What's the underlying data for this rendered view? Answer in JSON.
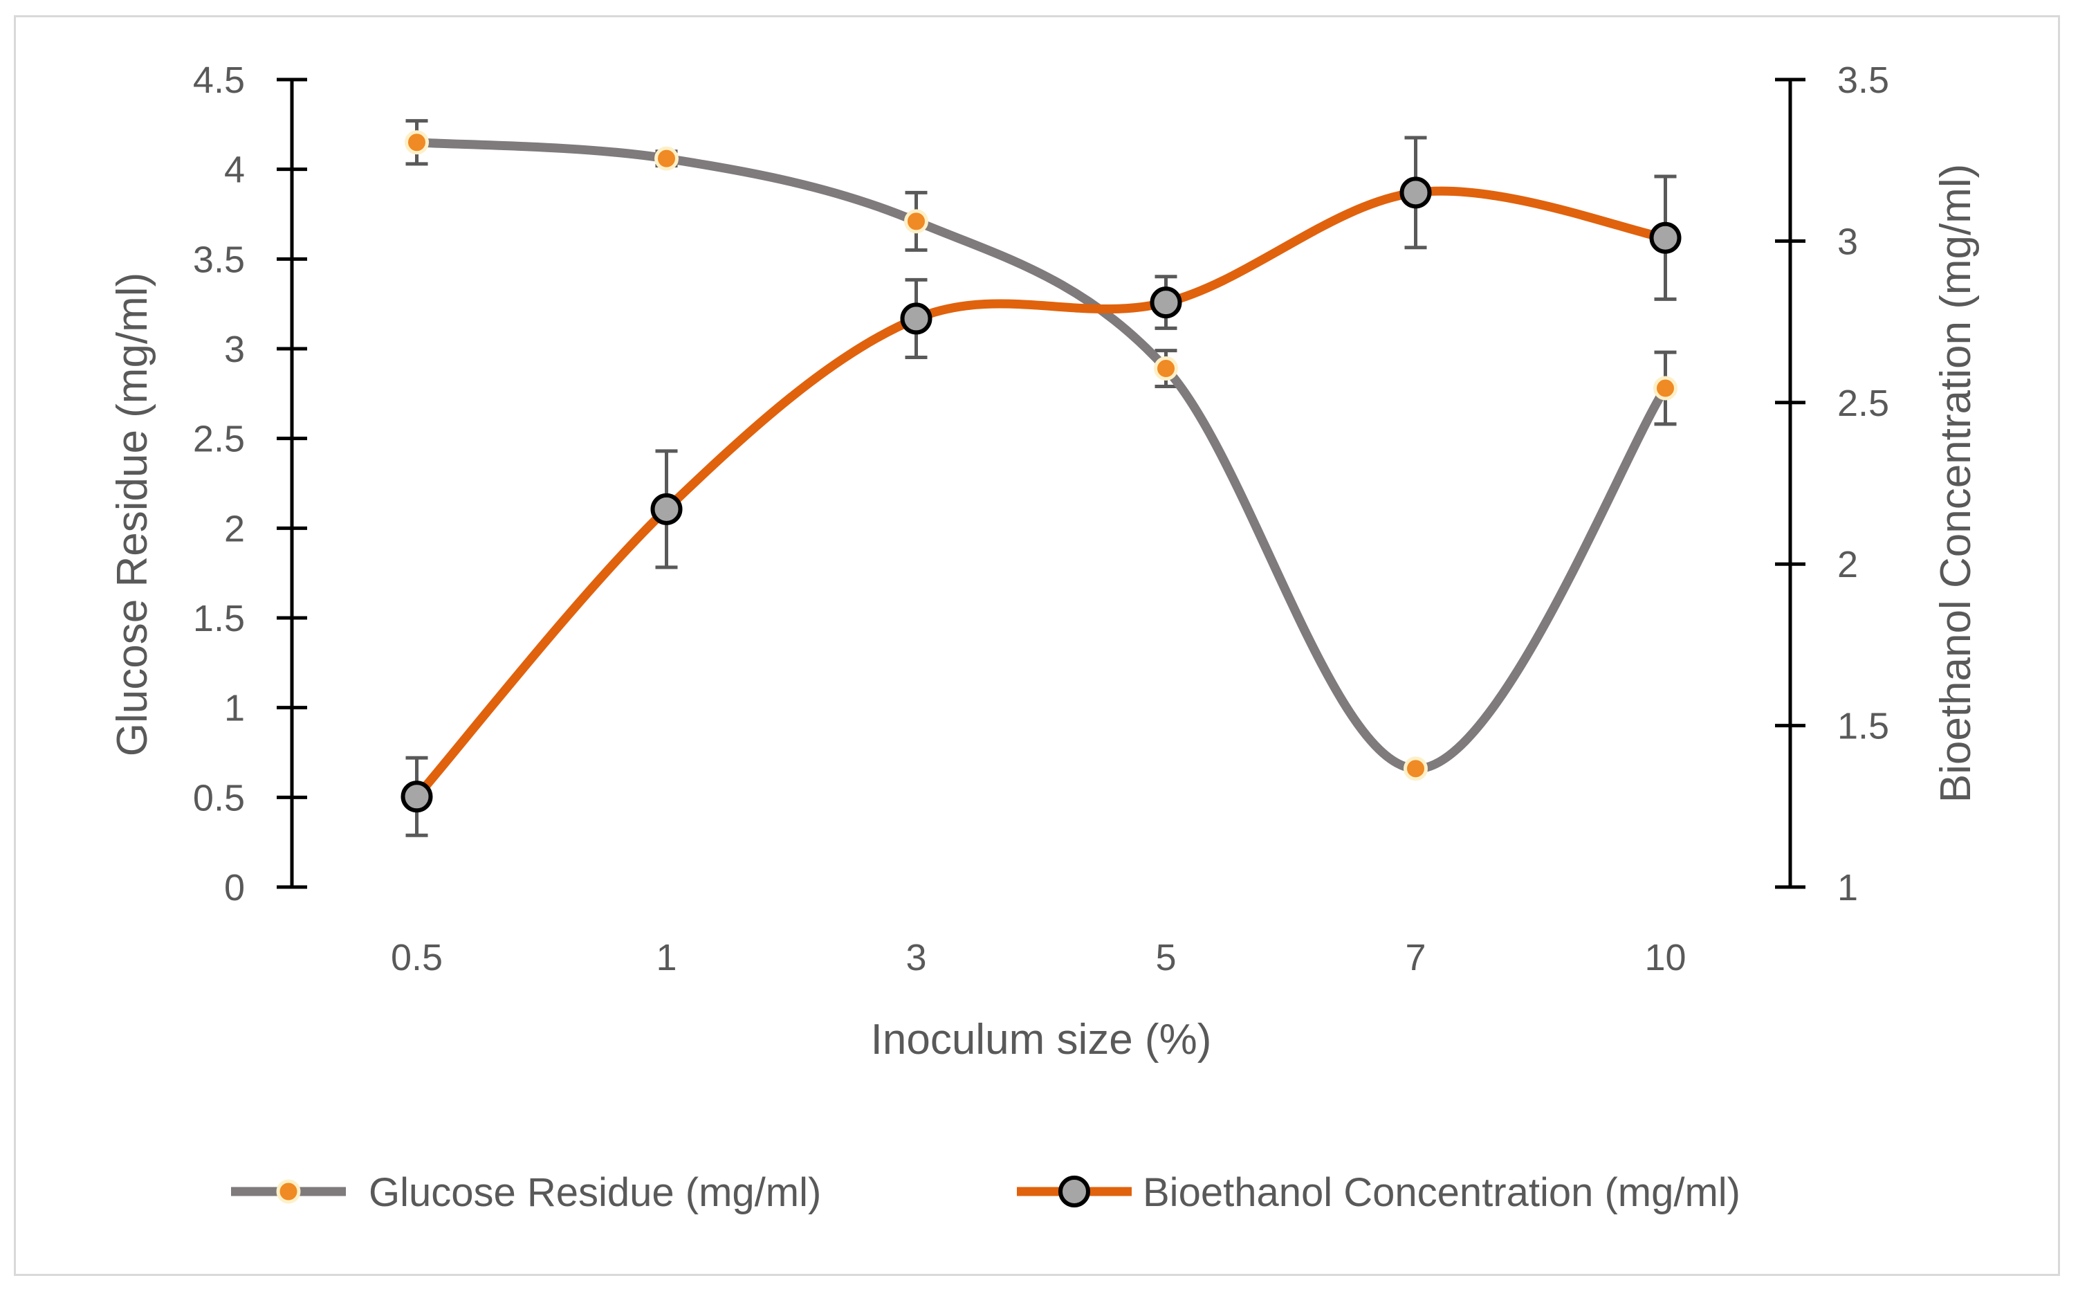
{
  "chart_data": {
    "type": "line",
    "categories": [
      "0.5",
      "1",
      "3",
      "5",
      "7",
      "10"
    ],
    "xlabel": "Inoculum size (%)",
    "y_left": {
      "label": "Glucose Residue (mg/ml)",
      "range": [
        0,
        4.5
      ],
      "ticks": [
        "0",
        "0.5",
        "1",
        "1.5",
        "2",
        "2.5",
        "3",
        "3.5",
        "4",
        "4.5"
      ]
    },
    "y_right": {
      "label": "Bioethanol Concentration (mg/ml)",
      "range": [
        1,
        3.5
      ],
      "ticks": [
        "1",
        "1.5",
        "2",
        "2.5",
        "3",
        "3.5"
      ]
    },
    "series": [
      {
        "name": "Glucose Residue  (mg/ml)",
        "axis": "left",
        "values": [
          4.15,
          4.06,
          3.71,
          2.89,
          0.66,
          2.78
        ],
        "errors": [
          0.12,
          0.04,
          0.16,
          0.1,
          0.0,
          0.2
        ],
        "line_color": "#7f7a7b",
        "marker_fill": "#f08a24",
        "marker_edge": "#fdf0c8"
      },
      {
        "name": "Bioethanol Concentration (mg/ml)",
        "axis": "right",
        "values": [
          1.28,
          2.17,
          2.76,
          2.81,
          3.15,
          3.01
        ],
        "errors": [
          0.12,
          0.18,
          0.12,
          0.08,
          0.17,
          0.19
        ],
        "line_color": "#e0620d",
        "marker_fill": "#a6a6a6",
        "marker_edge": "#000000"
      }
    ],
    "legend_position": "bottom"
  }
}
